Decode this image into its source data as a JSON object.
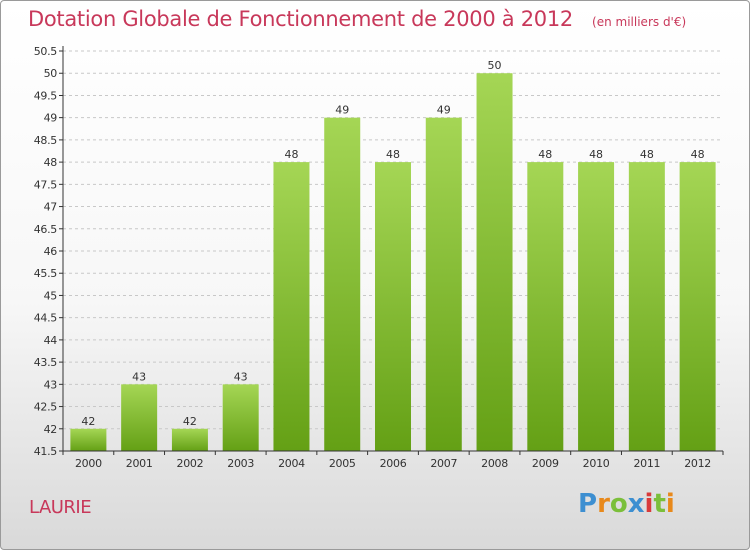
{
  "header": {
    "title": "Dotation Globale de Fonctionnement de 2000 à 2012",
    "subtitle": "(en milliers d'€)"
  },
  "footer": {
    "commune": "LAURIE",
    "logo_letters": [
      {
        "ch": "P",
        "color": "#3d8fd1"
      },
      {
        "ch": "r",
        "color": "#e8891b"
      },
      {
        "ch": "o",
        "color": "#7bbf3a"
      },
      {
        "ch": "x",
        "color": "#3d8fd1"
      },
      {
        "ch": "i",
        "color": "#d93a3a"
      },
      {
        "ch": "t",
        "color": "#7bbf3a"
      },
      {
        "ch": "i",
        "color": "#e8891b"
      }
    ]
  },
  "colors": {
    "bar_top": "#a5d655",
    "bar_bottom": "#64a015",
    "grid": "#c8c8c8",
    "axis": "#333333",
    "text": "#333333"
  },
  "chart_data": {
    "type": "bar",
    "categories": [
      "2000",
      "2001",
      "2002",
      "2003",
      "2004",
      "2005",
      "2006",
      "2007",
      "2008",
      "2009",
      "2010",
      "2011",
      "2012"
    ],
    "values": [
      42,
      43,
      42,
      43,
      48,
      49,
      48,
      49,
      50,
      48,
      48,
      48,
      48
    ],
    "heights": [
      42.0,
      43.0,
      42.0,
      43.0,
      48.0,
      49.0,
      48.0,
      49.0,
      50.0,
      48.0,
      48.0,
      48.0,
      48.0
    ],
    "data_labels": [
      "42",
      "43",
      "42",
      "43",
      "48",
      "49",
      "48",
      "49",
      "50",
      "48",
      "48",
      "48",
      "48"
    ],
    "yticks": [
      "41.5",
      "42",
      "42.5",
      "43",
      "43.5",
      "44",
      "44.5",
      "45",
      "45.5",
      "46",
      "46.5",
      "47",
      "47.5",
      "48",
      "48.5",
      "49",
      "49.5",
      "50",
      "50.5"
    ],
    "ylim": [
      41.5,
      50.5
    ],
    "grid": true,
    "legend": "none"
  }
}
